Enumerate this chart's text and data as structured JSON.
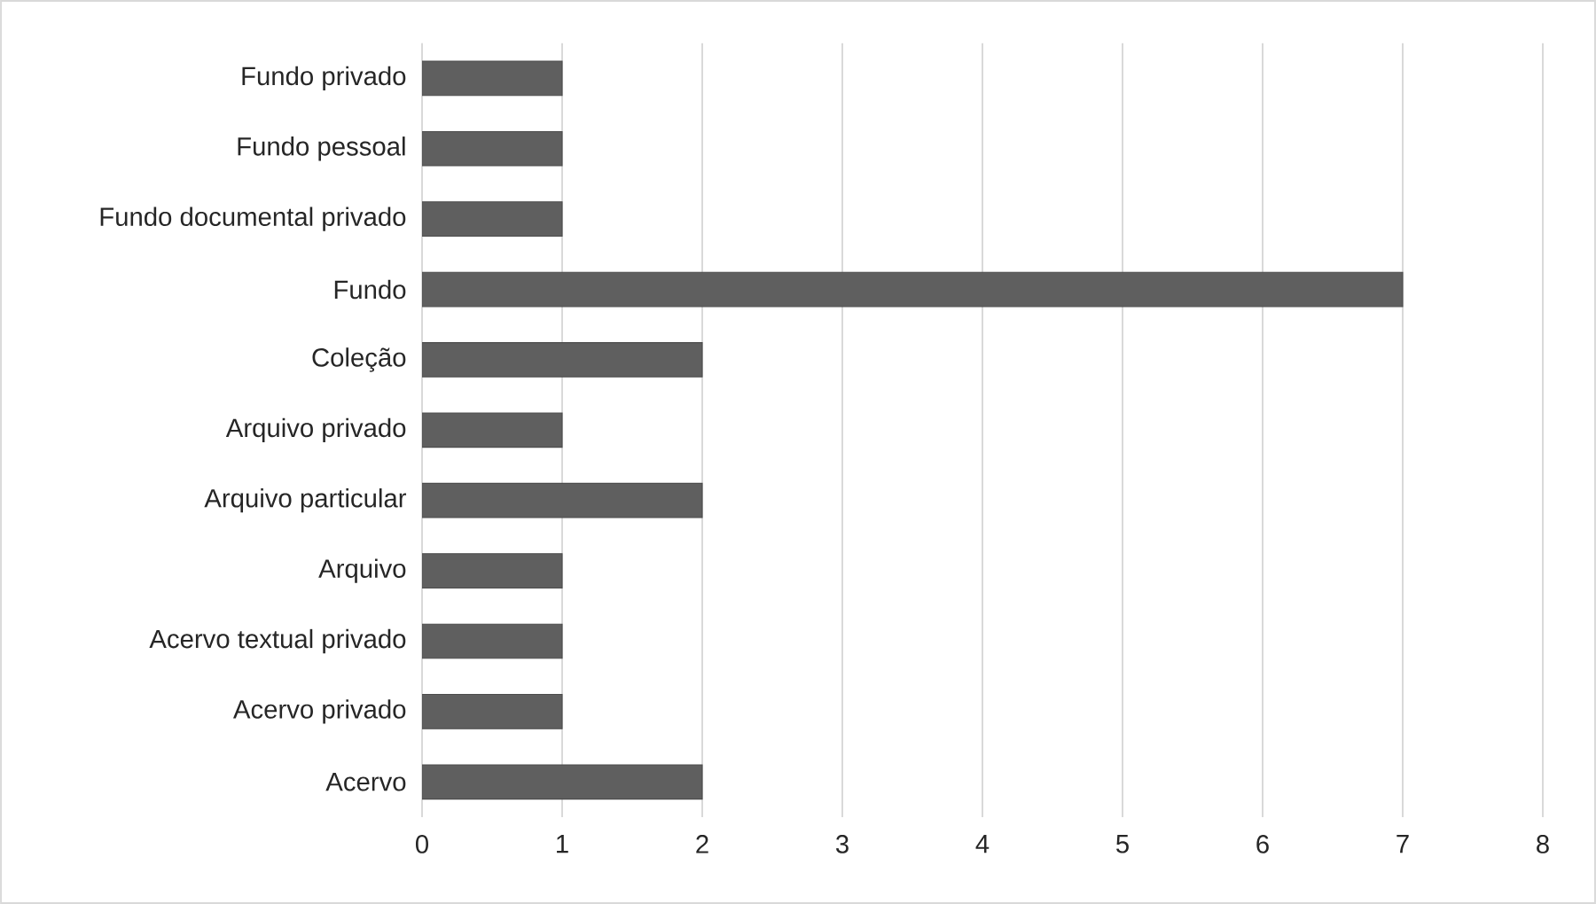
{
  "chart_data": {
    "type": "bar",
    "orientation": "horizontal",
    "categories": [
      "Fundo privado",
      "Fundo pessoal",
      "Fundo documental privado",
      "Fundo",
      "Coleção",
      "Arquivo privado",
      "Arquivo particular",
      "Arquivo",
      "Acervo textual privado",
      "Acervo privado",
      "Acervo"
    ],
    "values": [
      1,
      1,
      1,
      7,
      2,
      1,
      2,
      1,
      1,
      1,
      2
    ],
    "color": "#5f5f5f",
    "xlim": [
      0,
      8
    ],
    "xticks": [
      0,
      1,
      2,
      3,
      4,
      5,
      6,
      7,
      8
    ],
    "grid": "x"
  }
}
